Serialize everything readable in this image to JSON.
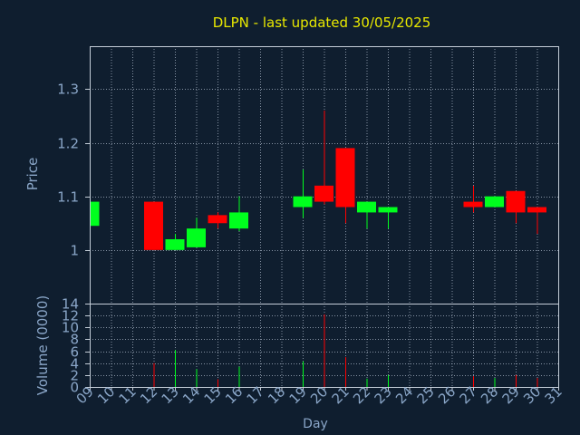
{
  "title": "DLPN - last updated 30/05/2025",
  "colors": {
    "background": "#0f1e2f",
    "title": "#e8e800",
    "axis_text": "#8aa6c8",
    "grid": "#b8c4d4",
    "frame": "#c4cdd8",
    "up": "#00ff1e",
    "down": "#ff0000"
  },
  "chart_data": [
    {
      "type": "candlestick",
      "title": "DLPN - last updated 30/05/2025",
      "ylabel": "Price",
      "xlabel": "",
      "ylim": [
        0.9,
        1.38
      ],
      "yticks": [
        1,
        1.1,
        1.2,
        1.3
      ],
      "ytick_labels": [
        "1",
        "1.1",
        "1.2",
        "1.3"
      ],
      "grid": true,
      "candles": [
        {
          "day": 9,
          "open": 1.045,
          "high": 1.09,
          "low": 1.045,
          "close": 1.09
        },
        {
          "day": 12,
          "open": 1.09,
          "high": 1.09,
          "low": 1.0,
          "close": 1.0
        },
        {
          "day": 13,
          "open": 1.0,
          "high": 1.03,
          "low": 1.0,
          "close": 1.02
        },
        {
          "day": 14,
          "open": 1.005,
          "high": 1.06,
          "low": 1.005,
          "close": 1.04
        },
        {
          "day": 15,
          "open": 1.065,
          "high": 1.07,
          "low": 1.04,
          "close": 1.05
        },
        {
          "day": 16,
          "open": 1.04,
          "high": 1.1,
          "low": 1.035,
          "close": 1.07
        },
        {
          "day": 19,
          "open": 1.08,
          "high": 1.15,
          "low": 1.06,
          "close": 1.1
        },
        {
          "day": 20,
          "open": 1.12,
          "high": 1.26,
          "low": 1.085,
          "close": 1.09
        },
        {
          "day": 21,
          "open": 1.19,
          "high": 1.19,
          "low": 1.05,
          "close": 1.08
        },
        {
          "day": 22,
          "open": 1.07,
          "high": 1.09,
          "low": 1.04,
          "close": 1.09
        },
        {
          "day": 23,
          "open": 1.07,
          "high": 1.08,
          "low": 1.04,
          "close": 1.08
        },
        {
          "day": 27,
          "open": 1.09,
          "high": 1.12,
          "low": 1.07,
          "close": 1.08
        },
        {
          "day": 28,
          "open": 1.08,
          "high": 1.1,
          "low": 1.08,
          "close": 1.1
        },
        {
          "day": 29,
          "open": 1.11,
          "high": 1.11,
          "low": 1.05,
          "close": 1.07
        },
        {
          "day": 30,
          "open": 1.08,
          "high": 1.08,
          "low": 1.03,
          "close": 1.07
        }
      ]
    },
    {
      "type": "bar",
      "ylabel": "Volume (0000)",
      "xlabel": "Day",
      "ylim": [
        0,
        14
      ],
      "yticks": [
        0,
        2,
        4,
        6,
        8,
        10,
        12,
        14
      ],
      "grid": true,
      "categories": [
        "09",
        "10",
        "11",
        "12",
        "13",
        "14",
        "15",
        "16",
        "17",
        "18",
        "19",
        "20",
        "21",
        "22",
        "23",
        "24",
        "25",
        "26",
        "27",
        "28",
        "29",
        "30",
        "31"
      ],
      "volumes": [
        {
          "day": 12,
          "value": 4.0,
          "direction": "down"
        },
        {
          "day": 13,
          "value": 6.2,
          "direction": "up"
        },
        {
          "day": 14,
          "value": 3.0,
          "direction": "up"
        },
        {
          "day": 15,
          "value": 1.3,
          "direction": "down"
        },
        {
          "day": 16,
          "value": 3.4,
          "direction": "up"
        },
        {
          "day": 19,
          "value": 4.3,
          "direction": "up"
        },
        {
          "day": 20,
          "value": 12.2,
          "direction": "down"
        },
        {
          "day": 21,
          "value": 5.0,
          "direction": "down"
        },
        {
          "day": 22,
          "value": 1.4,
          "direction": "up"
        },
        {
          "day": 23,
          "value": 2.0,
          "direction": "up"
        },
        {
          "day": 27,
          "value": 1.8,
          "direction": "down"
        },
        {
          "day": 28,
          "value": 1.5,
          "direction": "up"
        },
        {
          "day": 29,
          "value": 2.0,
          "direction": "down"
        },
        {
          "day": 30,
          "value": 1.5,
          "direction": "down"
        }
      ]
    }
  ]
}
